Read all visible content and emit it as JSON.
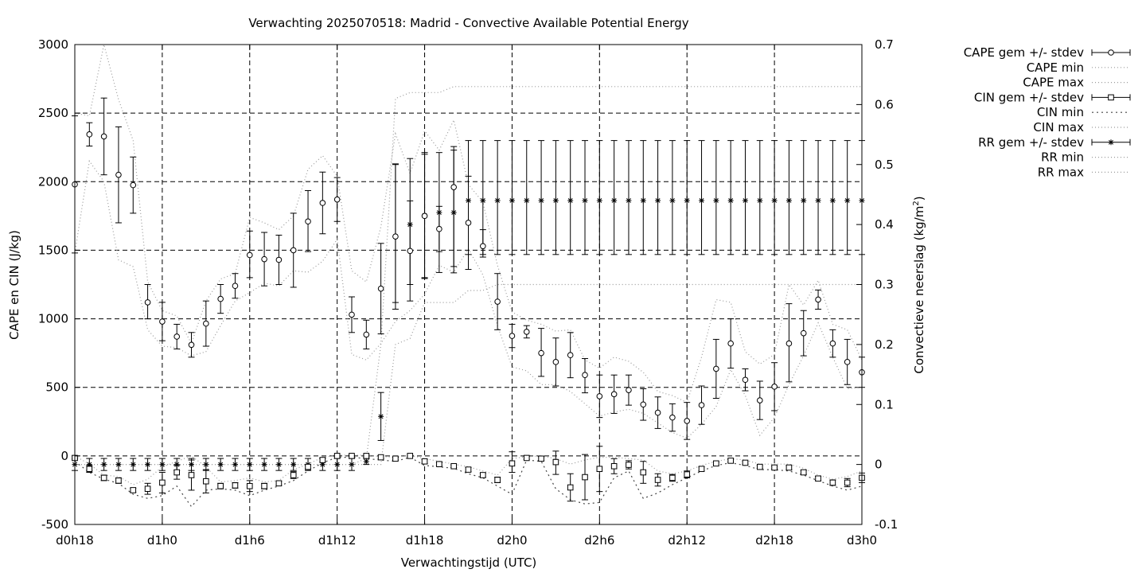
{
  "chart_data": {
    "type": "line",
    "title": "Verwachting 2025070518: Madrid - Convective Available Potential Energy",
    "xlabel": "Verwachtingstijd (UTC)",
    "ylabel": "CAPE en CIN (J/kg)",
    "y2label": "Convectieve neerslag (kg/m²)",
    "y2label_main": "Convectieve neerslag (kg/m",
    "y2label_sup": "2",
    "y2label_close": ")",
    "xlim": [
      18,
      72
    ],
    "ylim": [
      -500,
      3000
    ],
    "y2lim": [
      -0.1,
      0.7
    ],
    "grid": true,
    "legend_position": "outside-right",
    "x_ticks": [
      {
        "x": 18,
        "label": "d0h18"
      },
      {
        "x": 24,
        "label": "d1h0"
      },
      {
        "x": 30,
        "label": "d1h6"
      },
      {
        "x": 36,
        "label": "d1h12"
      },
      {
        "x": 42,
        "label": "d1h18"
      },
      {
        "x": 48,
        "label": "d2h0"
      },
      {
        "x": 54,
        "label": "d2h6"
      },
      {
        "x": 60,
        "label": "d2h12"
      },
      {
        "x": 66,
        "label": "d2h18"
      },
      {
        "x": 72,
        "label": "d3h0"
      }
    ],
    "y_ticks": [
      {
        "v": -500,
        "label": "-500"
      },
      {
        "v": 0,
        "label": "0"
      },
      {
        "v": 500,
        "label": "500"
      },
      {
        "v": 1000,
        "label": "1000"
      },
      {
        "v": 1500,
        "label": "1500"
      },
      {
        "v": 2000,
        "label": "2000"
      },
      {
        "v": 2500,
        "label": "2500"
      },
      {
        "v": 3000,
        "label": "3000"
      }
    ],
    "y2_ticks": [
      {
        "v": -0.1,
        "label": "-0.1"
      },
      {
        "v": 0,
        "label": "0"
      },
      {
        "v": 0.1,
        "label": "0.1"
      },
      {
        "v": 0.2,
        "label": "0.2"
      },
      {
        "v": 0.3,
        "label": "0.3"
      },
      {
        "v": 0.4,
        "label": "0.4"
      },
      {
        "v": 0.5,
        "label": "0.5"
      },
      {
        "v": 0.6,
        "label": "0.6"
      },
      {
        "v": 0.7,
        "label": "0.7"
      }
    ],
    "legend": [
      {
        "label": "CAPE gem +/- stdev",
        "kind": "errorbar",
        "marker": "circle"
      },
      {
        "label": "CAPE min",
        "kind": "dotted"
      },
      {
        "label": "CAPE max",
        "kind": "dotted"
      },
      {
        "label": "CIN gem +/- stdev",
        "kind": "errorbar",
        "marker": "square"
      },
      {
        "label": "CIN min",
        "kind": "dotted-coarse"
      },
      {
        "label": "CIN max",
        "kind": "dotted"
      },
      {
        "label": "RR gem +/- stdev",
        "kind": "errorbar",
        "marker": "star"
      },
      {
        "label": "RR min",
        "kind": "dotted"
      },
      {
        "label": "RR max",
        "kind": "dotted"
      }
    ],
    "x": [
      18,
      19,
      20,
      21,
      22,
      23,
      24,
      25,
      26,
      27,
      28,
      29,
      30,
      31,
      32,
      33,
      34,
      35,
      36,
      37,
      38,
      39,
      40,
      41,
      42,
      43,
      44,
      45,
      46,
      47,
      48,
      49,
      50,
      51,
      52,
      53,
      54,
      55,
      56,
      57,
      58,
      59,
      60,
      61,
      62,
      63,
      64,
      65,
      66,
      67,
      68,
      69,
      70,
      71,
      72
    ],
    "series": [
      {
        "name": "CAPE gem +/- stdev",
        "mean": [
          1980,
          2345,
          2330,
          2050,
          1975,
          1120,
          980,
          870,
          810,
          965,
          1145,
          1240,
          1465,
          1435,
          1430,
          1500,
          1710,
          1845,
          1870,
          1030,
          885,
          1220,
          1600,
          1495,
          1750,
          1655,
          1960,
          1700,
          1530,
          1125,
          875,
          905,
          750,
          685,
          735,
          590,
          435,
          450,
          480,
          375,
          315,
          280,
          255,
          370,
          635,
          820,
          555,
          405,
          505,
          820,
          895,
          1140,
          820,
          685,
          610
        ],
        "lower": [
          1480,
          2260,
          2050,
          1700,
          1770,
          1000,
          840,
          780,
          720,
          800,
          1040,
          1150,
          1300,
          1240,
          1250,
          1230,
          1490,
          1620,
          1710,
          900,
          780,
          890,
          1070,
          1130,
          1300,
          1490,
          1335,
          1360,
          1450,
          920,
          790,
          860,
          580,
          510,
          570,
          460,
          280,
          310,
          370,
          260,
          200,
          180,
          120,
          230,
          420,
          640,
          475,
          265,
          330,
          540,
          730,
          1070,
          720,
          520,
          500
        ],
        "upper": [
          2480,
          2430,
          2610,
          2400,
          2180,
          1250,
          1120,
          960,
          900,
          1130,
          1250,
          1330,
          1640,
          1630,
          1610,
          1770,
          1935,
          2070,
          2030,
          1160,
          990,
          1550,
          2130,
          1860,
          2200,
          1820,
          2230,
          2040,
          1650,
          1330,
          960,
          950,
          930,
          860,
          900,
          710,
          590,
          590,
          590,
          490,
          430,
          380,
          390,
          510,
          850,
          1000,
          635,
          545,
          680,
          1110,
          1060,
          1210,
          920,
          850,
          720
        ]
      },
      {
        "name": "CAPE min",
        "values": [
          1480,
          2150,
          2000,
          1430,
          1380,
          920,
          800,
          790,
          730,
          760,
          950,
          1130,
          1190,
          1260,
          1240,
          1350,
          1340,
          1420,
          1580,
          740,
          700,
          820,
          980,
          1060,
          1180,
          1390,
          1340,
          1510,
          1320,
          950,
          650,
          620,
          520,
          520,
          470,
          380,
          290,
          320,
          340,
          310,
          240,
          170,
          130,
          230,
          360,
          630,
          440,
          150,
          280,
          520,
          730,
          970,
          720,
          490,
          500
        ]
      },
      {
        "name": "CAPE max",
        "values": [
          2500,
          2480,
          3000,
          2600,
          2300,
          1270,
          1060,
          1020,
          820,
          1130,
          1290,
          1330,
          1740,
          1700,
          1650,
          1750,
          2090,
          2190,
          2040,
          1350,
          1270,
          1670,
          2350,
          2060,
          2370,
          2230,
          2450,
          1980,
          1850,
          1390,
          1050,
          990,
          960,
          910,
          920,
          700,
          640,
          720,
          690,
          610,
          470,
          440,
          390,
          720,
          1140,
          1120,
          760,
          670,
          740,
          1250,
          1100,
          1280,
          960,
          920,
          700
        ]
      },
      {
        "name": "CIN gem +/- stdev",
        "mean": [
          -15,
          -95,
          -160,
          -180,
          -250,
          -240,
          -195,
          -120,
          -140,
          -185,
          -220,
          -215,
          -220,
          -220,
          -200,
          -140,
          -80,
          -30,
          0,
          0,
          0,
          -10,
          -20,
          0,
          -40,
          -60,
          -75,
          -100,
          -140,
          -175,
          -55,
          -15,
          -20,
          -45,
          -230,
          -155,
          -95,
          -75,
          -65,
          -120,
          -175,
          -160,
          -135,
          -95,
          -55,
          -35,
          -50,
          -80,
          -85,
          -85,
          -120,
          -165,
          -195,
          -195,
          -160
        ],
        "lower": [
          -30,
          -120,
          -180,
          -200,
          -265,
          -280,
          -270,
          -170,
          -250,
          -270,
          -240,
          -235,
          -260,
          -240,
          -215,
          -165,
          -95,
          -45,
          -5,
          -5,
          -10,
          -20,
          -30,
          -5,
          -55,
          -70,
          -85,
          -115,
          -155,
          -195,
          -120,
          -25,
          -35,
          -135,
          -330,
          -320,
          -260,
          -130,
          -95,
          -200,
          -220,
          -185,
          -160,
          -110,
          -65,
          -45,
          -60,
          -90,
          -95,
          -100,
          -135,
          -180,
          -215,
          -225,
          -195
        ],
        "upper": [
          0,
          -70,
          -140,
          -160,
          -235,
          -200,
          -120,
          -70,
          -30,
          -100,
          -200,
          -195,
          -180,
          -200,
          -185,
          -115,
          -65,
          -15,
          5,
          5,
          10,
          0,
          -10,
          5,
          -25,
          -50,
          -65,
          -85,
          -125,
          -155,
          30,
          -5,
          -5,
          35,
          -130,
          10,
          70,
          -20,
          -35,
          -40,
          -130,
          -135,
          -110,
          -80,
          -45,
          -25,
          -40,
          -70,
          -75,
          -70,
          -105,
          -150,
          -175,
          -165,
          -125
        ]
      },
      {
        "name": "CIN min",
        "values": [
          -40,
          -120,
          -170,
          -200,
          -280,
          -310,
          -290,
          -220,
          -370,
          -250,
          -240,
          -250,
          -290,
          -250,
          -220,
          -180,
          -110,
          -50,
          -10,
          -10,
          -20,
          -30,
          -40,
          -10,
          -70,
          -80,
          -90,
          -130,
          -160,
          -220,
          -280,
          -30,
          -40,
          -240,
          -320,
          -350,
          -340,
          -160,
          -110,
          -310,
          -270,
          -210,
          -160,
          -110,
          -70,
          -50,
          -70,
          -100,
          -100,
          -110,
          -140,
          -180,
          -220,
          -250,
          -220
        ]
      },
      {
        "name": "CIN max",
        "values": [
          0,
          -60,
          -140,
          -150,
          -210,
          -170,
          -80,
          -40,
          0,
          -80,
          -190,
          -180,
          -160,
          -190,
          -180,
          -100,
          -60,
          -10,
          5,
          5,
          5,
          -5,
          -10,
          5,
          -20,
          -40,
          -60,
          -80,
          -110,
          -140,
          -20,
          -5,
          0,
          -20,
          -60,
          -30,
          -10,
          -10,
          -20,
          -30,
          -110,
          -130,
          -110,
          -70,
          -40,
          -20,
          -30,
          -60,
          -60,
          -60,
          -90,
          -140,
          -170,
          -150,
          -110
        ]
      },
      {
        "name": "RR gem +/- stdev",
        "mean": [
          0,
          0,
          0,
          0,
          0,
          0,
          0,
          0,
          0,
          0,
          0,
          0,
          0,
          0,
          0,
          0,
          0,
          0,
          0,
          0,
          0.005,
          0.08,
          0.38,
          0.4,
          0.415,
          0.42,
          0.42,
          0.44,
          0.44,
          0.44,
          0.44,
          0.44,
          0.44,
          0.44,
          0.44,
          0.44,
          0.44,
          0.44,
          0.44,
          0.44,
          0.44,
          0.44,
          0.44,
          0.44,
          0.44,
          0.44,
          0.44,
          0.44,
          0.44,
          0.44,
          0.44,
          0.44,
          0.44,
          0.44,
          0.44
        ],
        "lower": [
          -0.01,
          -0.01,
          -0.01,
          -0.01,
          -0.01,
          -0.01,
          -0.01,
          -0.01,
          -0.01,
          -0.01,
          -0.01,
          -0.01,
          -0.01,
          -0.01,
          -0.01,
          -0.01,
          -0.01,
          -0.01,
          -0.01,
          -0.01,
          0,
          0.04,
          0.27,
          0.3,
          0.31,
          0.32,
          0.33,
          0.35,
          0.35,
          0.35,
          0.35,
          0.35,
          0.35,
          0.35,
          0.35,
          0.35,
          0.35,
          0.35,
          0.35,
          0.35,
          0.35,
          0.35,
          0.35,
          0.35,
          0.35,
          0.35,
          0.35,
          0.35,
          0.35,
          0.35,
          0.35,
          0.35,
          0.35,
          0.35,
          0.35
        ],
        "upper": [
          0.01,
          0.01,
          0.01,
          0.01,
          0.01,
          0.01,
          0.01,
          0.01,
          0.01,
          0.01,
          0.01,
          0.01,
          0.01,
          0.01,
          0.01,
          0.01,
          0.01,
          0.01,
          0.01,
          0.01,
          0.01,
          0.12,
          0.5,
          0.51,
          0.52,
          0.52,
          0.53,
          0.54,
          0.54,
          0.54,
          0.54,
          0.54,
          0.54,
          0.54,
          0.54,
          0.54,
          0.54,
          0.54,
          0.54,
          0.54,
          0.54,
          0.54,
          0.54,
          0.54,
          0.54,
          0.54,
          0.54,
          0.54,
          0.54,
          0.54,
          0.54,
          0.54,
          0.54,
          0.54,
          0.54
        ]
      },
      {
        "name": "RR min",
        "values": [
          0,
          0,
          0,
          0,
          0,
          0,
          0,
          0,
          0,
          0,
          0,
          0,
          0,
          0,
          0,
          0,
          0,
          0,
          0,
          0,
          0,
          0,
          0.2,
          0.21,
          0.27,
          0.27,
          0.27,
          0.29,
          0.29,
          0.3,
          0.3,
          0.3,
          0.3,
          0.3,
          0.3,
          0.3,
          0.3,
          0.3,
          0.3,
          0.3,
          0.3,
          0.3,
          0.3,
          0.3,
          0.3,
          0.3,
          0.3,
          0.3,
          0.3,
          0.3,
          0.3,
          0.3,
          0.3,
          0.3,
          0.3
        ]
      },
      {
        "name": "RR max",
        "values": [
          0,
          0,
          0,
          0,
          0,
          0,
          0,
          0,
          0,
          0,
          0,
          0,
          0,
          0,
          0,
          0,
          0,
          0,
          0,
          0,
          0.01,
          0.2,
          0.61,
          0.62,
          0.62,
          0.62,
          0.63,
          0.63,
          0.63,
          0.63,
          0.63,
          0.63,
          0.63,
          0.63,
          0.63,
          0.63,
          0.63,
          0.63,
          0.63,
          0.63,
          0.63,
          0.63,
          0.63,
          0.63,
          0.63,
          0.63,
          0.63,
          0.63,
          0.63,
          0.63,
          0.63,
          0.63,
          0.63,
          0.63,
          0.63
        ]
      }
    ]
  }
}
